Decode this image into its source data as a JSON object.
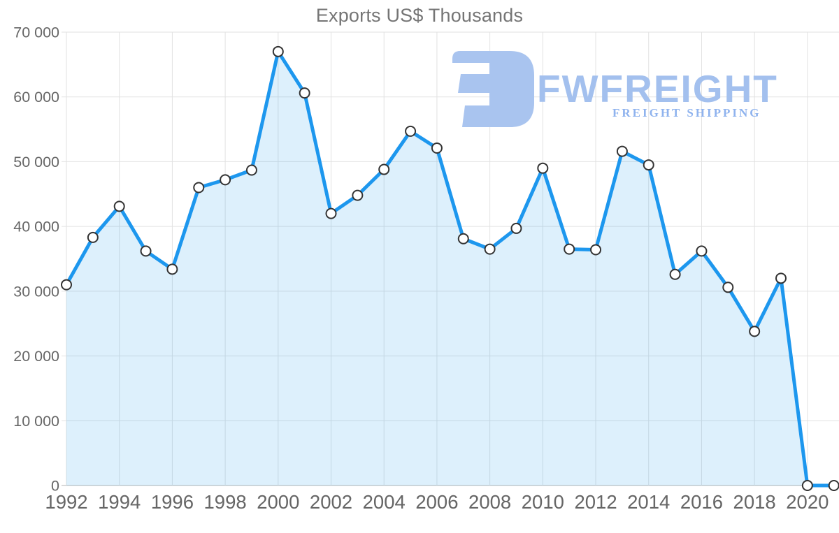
{
  "chart": {
    "title": "Exports US$ Thousands"
  },
  "watermark": {
    "brand": "FWFREIGHT",
    "tagline": "FREIGHT SHIPPING",
    "logo_color": "#a9c4ef",
    "brand_color": "#a3c0ee",
    "tagline_color": "#8fb3ee"
  },
  "chart_data": {
    "type": "area",
    "title": "Exports US$ Thousands",
    "xlabel": "",
    "ylabel": "",
    "x": [
      1992,
      1993,
      1994,
      1995,
      1996,
      1997,
      1998,
      1999,
      2000,
      2001,
      2002,
      2003,
      2004,
      2005,
      2006,
      2007,
      2008,
      2009,
      2010,
      2011,
      2012,
      2013,
      2014,
      2015,
      2016,
      2017,
      2018,
      2019,
      2020,
      2021
    ],
    "series": [
      {
        "name": "Exports US$ Thousands",
        "values": [
          31000,
          38300,
          43100,
          36200,
          33400,
          46000,
          47200,
          48700,
          67000,
          60600,
          42000,
          44800,
          48800,
          54700,
          52100,
          38100,
          36500,
          39700,
          49000,
          36500,
          36400,
          51600,
          49500,
          32600,
          36200,
          30600,
          23800,
          32000,
          0,
          0
        ]
      }
    ],
    "ylim": [
      0,
      70000
    ],
    "grid": true,
    "legend_position": "none",
    "markers": true,
    "y_ticks": [
      {
        "value": 0,
        "label": "0"
      },
      {
        "value": 10000,
        "label": "10 000"
      },
      {
        "value": 20000,
        "label": "20 000"
      },
      {
        "value": 30000,
        "label": "30 000"
      },
      {
        "value": 40000,
        "label": "40 000"
      },
      {
        "value": 50000,
        "label": "50 000"
      },
      {
        "value": 60000,
        "label": "60 000"
      },
      {
        "value": 70000,
        "label": "70 000"
      }
    ],
    "x_ticks": [
      {
        "value": 1992,
        "label": "1992"
      },
      {
        "value": 1994,
        "label": "1994"
      },
      {
        "value": 1996,
        "label": "1996"
      },
      {
        "value": 1998,
        "label": "1998"
      },
      {
        "value": 2000,
        "label": "2000"
      },
      {
        "value": 2002,
        "label": "2002"
      },
      {
        "value": 2004,
        "label": "2004"
      },
      {
        "value": 2006,
        "label": "2006"
      },
      {
        "value": 2008,
        "label": "2008"
      },
      {
        "value": 2010,
        "label": "2010"
      },
      {
        "value": 2012,
        "label": "2012"
      },
      {
        "value": 2014,
        "label": "2014"
      },
      {
        "value": 2016,
        "label": "2016"
      },
      {
        "value": 2018,
        "label": "2018"
      },
      {
        "value": 2020,
        "label": "2020"
      }
    ],
    "style": {
      "line_color": "#1d97ee",
      "line_width": 5,
      "area_fill_color": "#1d97ee",
      "area_fill_opacity": 0.15,
      "marker_fill": "#ffffff",
      "marker_stroke": "#333333",
      "marker_radius": 7,
      "gridline_color": "#e2e2e2",
      "axis_line_color": "#b3b3b3",
      "tick_label_color": "#666666",
      "title_color": "#757575"
    }
  }
}
